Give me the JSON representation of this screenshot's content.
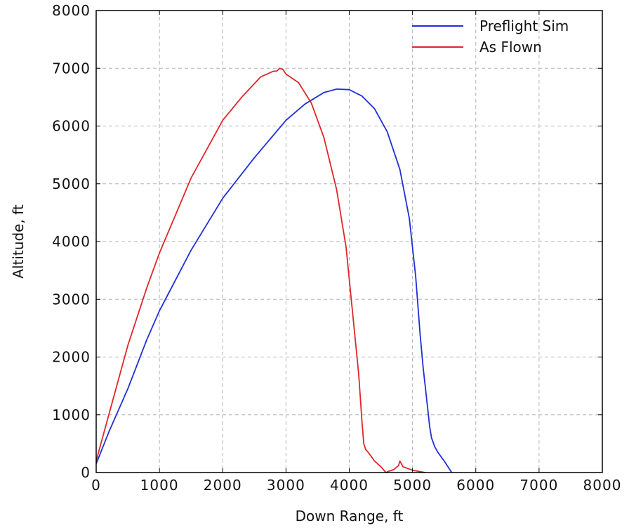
{
  "chart_data": {
    "type": "line",
    "xlabel": "Down Range, ft",
    "ylabel": "Altitude, ft",
    "xlim": [
      0,
      8000
    ],
    "ylim": [
      0,
      8000
    ],
    "xticks": [
      0,
      1000,
      2000,
      3000,
      4000,
      5000,
      6000,
      7000,
      8000
    ],
    "yticks": [
      0,
      1000,
      2000,
      3000,
      4000,
      5000,
      6000,
      7000,
      8000
    ],
    "tick_labels_x": [
      "0",
      "1000",
      "2000",
      "3000",
      "4000",
      "5000",
      "6000",
      "7000",
      "8000"
    ],
    "tick_labels_y": [
      "0",
      "1000",
      "2000",
      "3000",
      "4000",
      "5000",
      "6000",
      "7000",
      "8000"
    ],
    "grid": true,
    "legend_position": "top-right",
    "series": [
      {
        "name": "Preflight Sim",
        "color": "#1f2fd6",
        "x": [
          0,
          200,
          500,
          800,
          1000,
          1500,
          2000,
          2500,
          3000,
          3300,
          3600,
          3800,
          4000,
          4200,
          4400,
          4600,
          4800,
          4950,
          5050,
          5120,
          5170,
          5200,
          5230,
          5270,
          5300,
          5350,
          5400,
          5500,
          5620
        ],
        "y": [
          150,
          700,
          1450,
          2300,
          2800,
          3850,
          4750,
          5450,
          6100,
          6380,
          6580,
          6640,
          6630,
          6520,
          6300,
          5900,
          5250,
          4400,
          3400,
          2400,
          1800,
          1500,
          1200,
          800,
          600,
          450,
          350,
          200,
          0
        ]
      },
      {
        "name": "As Flown",
        "color": "#e0262a",
        "x": [
          0,
          200,
          500,
          800,
          1000,
          1500,
          2000,
          2300,
          2600,
          2800,
          2850,
          2900,
          2950,
          3000,
          3200,
          3400,
          3600,
          3800,
          3950,
          4050,
          4150,
          4200,
          4230,
          4260,
          4300,
          4400,
          4500,
          4580,
          4620,
          4700,
          4780,
          4800,
          4850,
          5000,
          5200
        ],
        "y": [
          200,
          1000,
          2200,
          3200,
          3800,
          5100,
          6100,
          6500,
          6850,
          6950,
          6950,
          7000,
          6980,
          6900,
          6750,
          6400,
          5800,
          4900,
          3900,
          2800,
          1700,
          900,
          500,
          400,
          350,
          200,
          100,
          0,
          20,
          50,
          120,
          200,
          100,
          40,
          0
        ]
      }
    ]
  }
}
